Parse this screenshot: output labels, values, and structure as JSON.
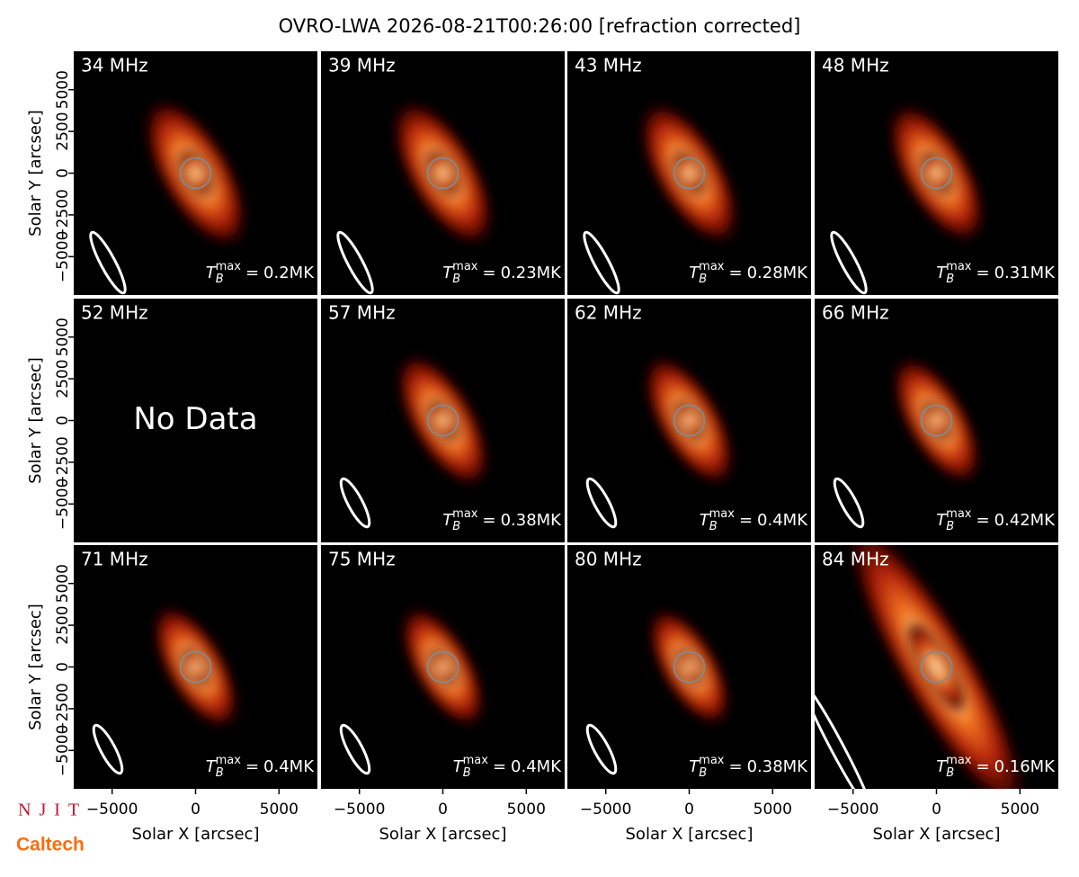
{
  "chart_data": {
    "type": "image-grid",
    "title": "OVRO-LWA 2026-08-21T00:26:00 [refraction corrected]",
    "xlabel": "Solar X [arcsec]",
    "ylabel": "Solar Y [arcsec]",
    "xlim": [
      -7300,
      7300
    ],
    "ylim": [
      -7300,
      7300
    ],
    "xticks": [
      {
        "value": -5000,
        "label": "−5000"
      },
      0,
      5000
    ],
    "yticks": [
      {
        "value": -5000,
        "label": "−5000"
      },
      {
        "value": -2500,
        "label": "−2500"
      },
      0,
      2500,
      5000
    ],
    "tb_symbol": "T",
    "tb_sub": "B",
    "tb_sup": "max",
    "tb_eq": "=",
    "panels": [
      {
        "label": "34 MHz",
        "tb_max": "0.2MK"
      },
      {
        "label": "39 MHz",
        "tb_max": "0.23MK"
      },
      {
        "label": "43 MHz",
        "tb_max": "0.28MK"
      },
      {
        "label": "48 MHz",
        "tb_max": "0.31MK"
      },
      {
        "label": "52 MHz",
        "no_data": "No Data"
      },
      {
        "label": "57 MHz",
        "tb_max": "0.38MK"
      },
      {
        "label": "62 MHz",
        "tb_max": "0.4MK"
      },
      {
        "label": "66 MHz",
        "tb_max": "0.42MK"
      },
      {
        "label": "71 MHz",
        "tb_max": "0.4MK"
      },
      {
        "label": "75 MHz",
        "tb_max": "0.4MK"
      },
      {
        "label": "80 MHz",
        "tb_max": "0.38MK"
      },
      {
        "label": "84 MHz",
        "tb_max": "0.16MK"
      }
    ]
  },
  "logos": [
    "NJIT",
    "Caltech"
  ]
}
